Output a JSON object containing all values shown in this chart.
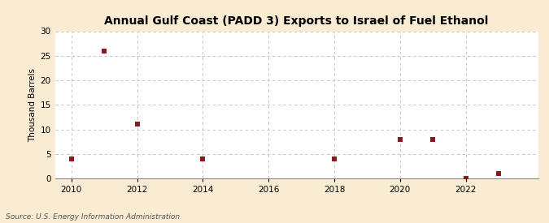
{
  "title": "Annual Gulf Coast (PADD 3) Exports to Israel of Fuel Ethanol",
  "ylabel": "Thousand Barrels",
  "source": "Source: U.S. Energy Information Administration",
  "background_color": "#faecd2",
  "plot_background_color": "#ffffff",
  "marker_color": "#8b1a1a",
  "grid_color": "#bbbbbb",
  "xlim": [
    2009.5,
    2024.2
  ],
  "ylim": [
    0,
    30
  ],
  "yticks": [
    0,
    5,
    10,
    15,
    20,
    25,
    30
  ],
  "xticks": [
    2010,
    2012,
    2014,
    2016,
    2018,
    2020,
    2022
  ],
  "data_x": [
    2010,
    2011,
    2012,
    2014,
    2018,
    2020,
    2021,
    2022,
    2023
  ],
  "data_y": [
    4,
    26,
    11,
    4,
    4,
    8,
    8,
    0,
    1
  ]
}
